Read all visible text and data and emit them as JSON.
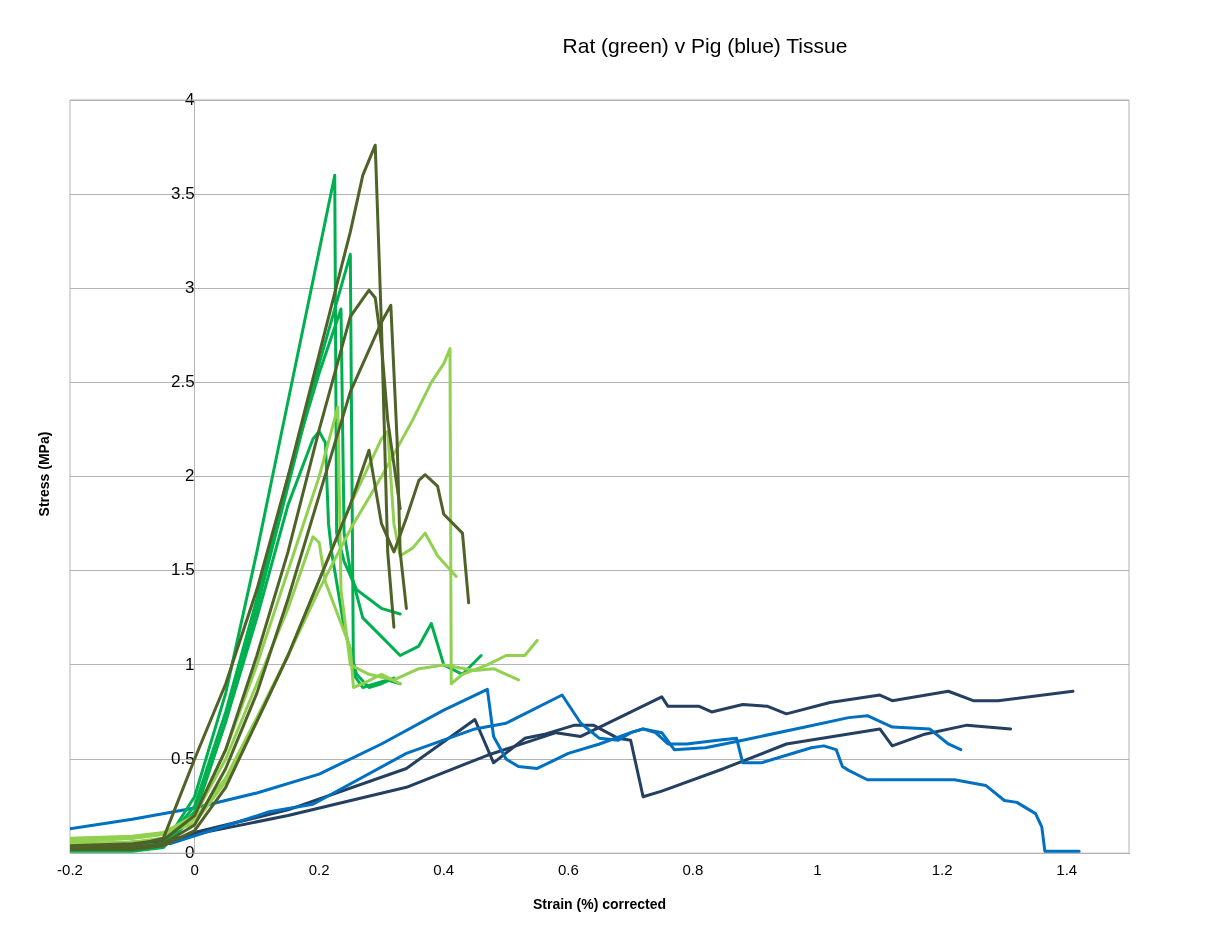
{
  "chart_data": {
    "type": "line",
    "title": "Rat (green) v Pig (blue) Tissue",
    "xlabel": "Strain (%) corrected",
    "ylabel": "Stress (MPa)",
    "xlim": [
      -0.2,
      1.5
    ],
    "xticks": [
      -0.2,
      0,
      0.2,
      0.4,
      0.6,
      0.8,
      1,
      1.2,
      1.4
    ],
    "ylim": [
      0,
      4
    ],
    "yticks": [
      0,
      0.5,
      1,
      1.5,
      2,
      2.5,
      3,
      3.5,
      4
    ],
    "grid": "y",
    "legend": false,
    "marker": "none",
    "line_style": "solid",
    "series": [
      {
        "color": "#4f6228",
        "x": [
          -0.2,
          -0.1,
          -0.05,
          0,
          0.05,
          0.1,
          0.15,
          0.2,
          0.25,
          0.27,
          0.29,
          0.3,
          0.31,
          0.32
        ],
        "values": [
          0.03,
          0.04,
          0.08,
          0.5,
          0.9,
          1.4,
          2.0,
          2.65,
          3.3,
          3.6,
          3.76,
          2.8,
          1.6,
          1.2
        ]
      },
      {
        "color": "#4f6228",
        "x": [
          -0.2,
          -0.1,
          -0.05,
          0,
          0.05,
          0.1,
          0.15,
          0.2,
          0.25,
          0.28,
          0.29,
          0.3,
          0.31,
          0.33
        ],
        "values": [
          0.04,
          0.05,
          0.07,
          0.2,
          0.55,
          1.05,
          1.6,
          2.25,
          2.85,
          2.99,
          2.95,
          2.7,
          2.3,
          1.83
        ]
      },
      {
        "color": "#4f6228",
        "x": [
          -0.2,
          -0.1,
          -0.05,
          0,
          0.05,
          0.1,
          0.15,
          0.2,
          0.25,
          0.3,
          0.315,
          0.325,
          0.33,
          0.34
        ],
        "values": [
          0.03,
          0.03,
          0.05,
          0.15,
          0.45,
          0.85,
          1.35,
          1.9,
          2.45,
          2.82,
          2.91,
          2.2,
          1.6,
          1.3
        ]
      },
      {
        "color": "#4f6228",
        "x": [
          -0.2,
          -0.1,
          -0.05,
          0,
          0.05,
          0.1,
          0.15,
          0.2,
          0.25,
          0.28,
          0.3,
          0.32,
          0.34,
          0.36,
          0.37,
          0.39,
          0.4,
          0.43,
          0.44
        ],
        "values": [
          0.02,
          0.02,
          0.04,
          0.12,
          0.35,
          0.7,
          1.05,
          1.45,
          1.85,
          2.14,
          1.75,
          1.6,
          1.78,
          1.98,
          2.01,
          1.95,
          1.8,
          1.7,
          1.33
        ]
      },
      {
        "color": "#92d050",
        "x": [
          -0.2,
          -0.1,
          -0.05,
          0,
          0.05,
          0.1,
          0.15,
          0.2,
          0.25,
          0.3,
          0.35,
          0.38,
          0.4,
          0.41,
          0.412,
          0.43,
          0.47,
          0.5,
          0.53,
          0.55
        ],
        "values": [
          0.06,
          0.08,
          0.1,
          0.18,
          0.4,
          0.72,
          1.05,
          1.4,
          1.72,
          2.0,
          2.3,
          2.5,
          2.6,
          2.68,
          0.9,
          0.95,
          1.0,
          1.05,
          1.05,
          1.13
        ]
      },
      {
        "color": "#92d050",
        "x": [
          -0.2,
          -0.1,
          -0.05,
          0,
          0.05,
          0.1,
          0.15,
          0.2,
          0.25,
          0.3,
          0.31,
          0.32,
          0.33,
          0.35,
          0.37,
          0.39,
          0.42
        ],
        "values": [
          0.07,
          0.08,
          0.1,
          0.16,
          0.38,
          0.7,
          1.05,
          1.45,
          1.85,
          2.2,
          2.24,
          1.75,
          1.58,
          1.62,
          1.7,
          1.58,
          1.47
        ]
      },
      {
        "color": "#92d050",
        "x": [
          -0.2,
          -0.1,
          -0.05,
          0,
          0.05,
          0.1,
          0.15,
          0.2,
          0.23,
          0.235,
          0.25,
          0.28,
          0.32,
          0.36,
          0.4,
          0.45,
          0.48,
          0.52
        ],
        "values": [
          0.05,
          0.06,
          0.08,
          0.2,
          0.55,
          1.0,
          1.5,
          2.0,
          2.37,
          1.4,
          1.0,
          0.95,
          0.92,
          0.98,
          1.0,
          0.97,
          0.98,
          0.92
        ]
      },
      {
        "color": "#92d050",
        "x": [
          -0.2,
          -0.1,
          -0.05,
          0,
          0.05,
          0.1,
          0.15,
          0.19,
          0.2,
          0.21,
          0.25,
          0.255,
          0.27,
          0.3,
          0.33
        ],
        "values": [
          0.08,
          0.09,
          0.11,
          0.2,
          0.5,
          0.9,
          1.3,
          1.68,
          1.65,
          1.44,
          1.09,
          0.88,
          0.9,
          0.95,
          0.9
        ]
      },
      {
        "color": "#00b050",
        "x": [
          -0.2,
          -0.1,
          -0.05,
          0,
          0.05,
          0.1,
          0.15,
          0.2,
          0.225,
          0.228,
          0.24,
          0.26,
          0.28,
          0.3,
          0.33
        ],
        "values": [
          0.02,
          0.02,
          0.04,
          0.3,
          0.85,
          1.6,
          2.4,
          3.2,
          3.6,
          1.7,
          1.55,
          1.4,
          1.35,
          1.3,
          1.27
        ]
      },
      {
        "color": "#00b050",
        "x": [
          -0.2,
          -0.1,
          -0.05,
          0,
          0.05,
          0.1,
          0.15,
          0.2,
          0.25,
          0.255,
          0.27,
          0.29,
          0.31,
          0.33
        ],
        "values": [
          0.01,
          0.01,
          0.03,
          0.2,
          0.7,
          1.3,
          1.95,
          2.6,
          3.18,
          0.95,
          0.88,
          0.9,
          0.92,
          0.9
        ]
      },
      {
        "color": "#00b050",
        "x": [
          -0.2,
          -0.1,
          -0.05,
          0,
          0.05,
          0.1,
          0.15,
          0.2,
          0.235,
          0.24,
          0.25,
          0.27,
          0.3,
          0.33,
          0.36,
          0.38,
          0.4,
          0.43,
          0.46
        ],
        "values": [
          0.03,
          0.03,
          0.05,
          0.25,
          0.75,
          1.35,
          2.0,
          2.55,
          2.89,
          1.7,
          1.5,
          1.25,
          1.15,
          1.05,
          1.1,
          1.22,
          1.0,
          0.95,
          1.05
        ]
      },
      {
        "color": "#00b050",
        "x": [
          -0.2,
          -0.1,
          -0.05,
          0,
          0.05,
          0.1,
          0.15,
          0.19,
          0.2,
          0.21,
          0.215,
          0.22,
          0.24,
          0.26,
          0.28,
          0.3,
          0.32
        ],
        "values": [
          0.04,
          0.04,
          0.05,
          0.22,
          0.7,
          1.25,
          1.85,
          2.2,
          2.24,
          2.18,
          1.75,
          1.6,
          1.2,
          0.95,
          0.88,
          0.9,
          0.93
        ]
      },
      {
        "color": "#0070c0",
        "x": [
          -0.2,
          -0.1,
          0,
          0.1,
          0.2,
          0.3,
          0.4,
          0.47,
          0.48,
          0.5,
          0.52,
          0.55,
          0.6,
          0.65,
          0.7,
          0.72,
          0.74,
          0.76,
          0.79,
          0.84,
          0.87,
          0.88,
          0.91,
          0.99,
          1.01,
          1.03,
          1.04,
          1.05,
          1.08,
          1.22,
          1.27,
          1.3,
          1.32,
          1.35,
          1.36,
          1.365,
          1.42
        ],
        "values": [
          0.13,
          0.18,
          0.24,
          0.32,
          0.42,
          0.58,
          0.76,
          0.87,
          0.62,
          0.5,
          0.46,
          0.45,
          0.53,
          0.58,
          0.64,
          0.66,
          0.64,
          0.58,
          0.58,
          0.6,
          0.61,
          0.48,
          0.48,
          0.56,
          0.57,
          0.55,
          0.46,
          0.44,
          0.39,
          0.39,
          0.36,
          0.28,
          0.27,
          0.21,
          0.14,
          0.01,
          0.01
        ]
      },
      {
        "color": "#0070c0",
        "x": [
          -0.04,
          0.12,
          0.19,
          0.34,
          0.45,
          0.5,
          0.59,
          0.62,
          0.65,
          0.68,
          0.7,
          0.72,
          0.75,
          0.77,
          0.82,
          0.88,
          0.98,
          1.05,
          1.08,
          1.12,
          1.18,
          1.21,
          1.23
        ],
        "values": [
          0.05,
          0.22,
          0.26,
          0.53,
          0.66,
          0.69,
          0.84,
          0.69,
          0.61,
          0.6,
          0.64,
          0.66,
          0.64,
          0.55,
          0.56,
          0.6,
          0.67,
          0.72,
          0.73,
          0.67,
          0.66,
          0.58,
          0.55
        ]
      },
      {
        "color": "#243f60",
        "x": [
          -0.2,
          -0.04,
          0,
          0.15,
          0.34,
          0.45,
          0.48,
          0.53,
          0.56,
          0.61,
          0.64,
          0.68,
          0.7,
          0.72,
          0.75,
          0.85,
          0.95,
          1.1,
          1.12,
          1.17,
          1.24,
          1.31
        ],
        "values": [
          0.03,
          0.06,
          0.11,
          0.23,
          0.45,
          0.71,
          0.48,
          0.61,
          0.63,
          0.68,
          0.68,
          0.61,
          0.6,
          0.3,
          0.33,
          0.45,
          0.58,
          0.66,
          0.57,
          0.63,
          0.68,
          0.66
        ]
      },
      {
        "color": "#243f60",
        "x": [
          -0.2,
          -0.04,
          0,
          0.15,
          0.34,
          0.47,
          0.58,
          0.62,
          0.75,
          0.76,
          0.81,
          0.83,
          0.88,
          0.92,
          0.95,
          1.02,
          1.1,
          1.12,
          1.21,
          1.25,
          1.29,
          1.41
        ],
        "values": [
          0.04,
          0.07,
          0.1,
          0.2,
          0.35,
          0.52,
          0.64,
          0.62,
          0.83,
          0.78,
          0.78,
          0.75,
          0.79,
          0.78,
          0.74,
          0.8,
          0.84,
          0.81,
          0.86,
          0.81,
          0.81,
          0.86
        ]
      }
    ]
  }
}
